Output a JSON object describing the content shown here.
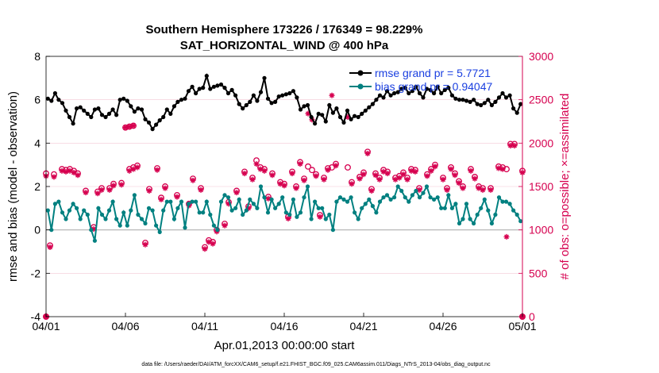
{
  "chart_data": {
    "type": "line",
    "title_line1": "Southern Hemisphere 173226 / 176349 = 98.229%",
    "title_line2": "SAT_HORIZONTAL_WIND @ 400 hPa",
    "xlabel": "Apr.01,2013 00:00:00 start",
    "ylabel_left": "rmse and bias (model - observation)",
    "ylabel_right": "# of obs: o=possible; ×=assimilated",
    "footnote": "data file: /Users/raeder/DAI/ATM_forcXX/CAM6_setup/f.e21.FHIST_BGC.f09_025.CAM6assim.011/Diags_NTrS_2013-04/obs_diag_output.nc",
    "xlim": [
      0,
      30
    ],
    "ylim_left": [
      -4,
      8
    ],
    "ylim_right": [
      0,
      3000
    ],
    "x_ticks": [
      0,
      5,
      10,
      15,
      20,
      25,
      30
    ],
    "x_tick_labels": [
      "04/01",
      "04/06",
      "04/11",
      "04/16",
      "04/21",
      "04/26",
      "05/01"
    ],
    "y_left_ticks": [
      -4,
      -2,
      0,
      2,
      4,
      6,
      8
    ],
    "y_left_tick_labels": [
      "-4",
      "-2",
      "0",
      "2",
      "4",
      "6",
      "8"
    ],
    "y_right_ticks": [
      0,
      500,
      1000,
      1500,
      2000,
      2500,
      3000
    ],
    "y_right_tick_labels": [
      "0",
      "500",
      "1000",
      "1500",
      "2000",
      "2500",
      "3000"
    ],
    "legend": [
      {
        "label": "rmse grand pr = 5.7721",
        "color": "#000000"
      },
      {
        "label": "bias grand pr = 0.94047",
        "color": "#008080"
      }
    ],
    "colors": {
      "rmse": "#000000",
      "bias": "#008080",
      "obs": "#d6004f",
      "zero_line": "#b0b0b0",
      "axis_right": "#d6004f"
    },
    "rmse": [
      6.05,
      5.95,
      6.3,
      6.0,
      5.85,
      5.5,
      5.2,
      4.9,
      5.6,
      5.65,
      5.5,
      5.35,
      5.2,
      5.55,
      5.6,
      5.3,
      5.2,
      5.35,
      5.55,
      5.3,
      6.0,
      6.05,
      5.95,
      5.7,
      5.45,
      5.6,
      5.55,
      5.1,
      4.95,
      4.65,
      4.85,
      5.05,
      5.2,
      5.55,
      5.35,
      5.7,
      5.9,
      6.0,
      6.05,
      6.4,
      6.6,
      6.3,
      6.5,
      6.55,
      7.1,
      6.5,
      6.6,
      6.65,
      6.7,
      6.55,
      6.3,
      6.45,
      6.2,
      5.8,
      5.6,
      5.75,
      5.9,
      6.2,
      5.95,
      6.35,
      7.0,
      6.05,
      5.85,
      5.9,
      6.15,
      6.2,
      6.25,
      6.3,
      6.4,
      6.1,
      5.55,
      5.7,
      5.75,
      5.2,
      4.9,
      5.35,
      5.3,
      5.0,
      5.75,
      5.4,
      5.6,
      5.2,
      4.95,
      5.5,
      5.1,
      5.25,
      5.2,
      5.35,
      5.5,
      5.65,
      5.8,
      6.0,
      6.2,
      6.1,
      6.4,
      6.2,
      6.3,
      6.35,
      6.5,
      6.55,
      6.3,
      6.4,
      6.6,
      6.3,
      6.1,
      6.5,
      6.45,
      6.3,
      6.6,
      6.3,
      6.45,
      6.55,
      6.2,
      6.05,
      6.0,
      6.0,
      5.95,
      5.9,
      6.0,
      5.8,
      5.75,
      5.85,
      6.0,
      5.75,
      5.9,
      6.1,
      6.3,
      6.1,
      6.2,
      5.6,
      5.4,
      5.8
    ],
    "bias": [
      0.9,
      0.0,
      1.2,
      1.3,
      0.8,
      0.5,
      0.9,
      1.2,
      1.0,
      0.5,
      0.9,
      0.7,
      0.0,
      -0.5,
      1.0,
      0.7,
      0.5,
      0.9,
      1.3,
      0.5,
      0.2,
      0.8,
      0.2,
      0.9,
      1.6,
      0.7,
      0.5,
      0.3,
      1.0,
      0.9,
      0.2,
      -0.1,
      0.9,
      1.3,
      1.3,
      0.5,
      1.0,
      1.3,
      0.1,
      1.2,
      1.3,
      1.3,
      0.8,
      0.8,
      1.3,
      0.7,
      0.2,
      0.0,
      1.3,
      1.6,
      1.5,
      0.9,
      1.0,
      1.4,
      0.7,
      0.9,
      1.4,
      1.2,
      1.0,
      2.0,
      1.5,
      0.8,
      1.4,
      1.0,
      1.2,
      1.5,
      0.8,
      0.7,
      1.4,
      0.6,
      0.8,
      1.5,
      2.0,
      0.5,
      1.3,
      1.0,
      1.0,
      0.5,
      0.7,
      0.0,
      1.3,
      1.5,
      1.4,
      1.3,
      1.5,
      0.8,
      0.5,
      1.0,
      1.2,
      1.4,
      1.1,
      0.8,
      1.3,
      1.5,
      1.6,
      1.4,
      1.5,
      2.0,
      1.8,
      1.5,
      1.3,
      1.6,
      1.8,
      1.5,
      1.7,
      2.0,
      1.5,
      1.4,
      1.5,
      1.0,
      1.0,
      1.6,
      1.0,
      1.2,
      0.3,
      0.5,
      1.2,
      0.5,
      0.3,
      0.7,
      1.0,
      1.4,
      0.9,
      0.3,
      0.7,
      1.5,
      1.3,
      1.3,
      1.2,
      0.9,
      0.7,
      0.4
    ],
    "obs_possible": [
      [
        0,
        1650
      ],
      [
        0.25,
        820
      ],
      [
        0.5,
        1640
      ],
      [
        1,
        1700
      ],
      [
        1.25,
        1690
      ],
      [
        1.5,
        1700
      ],
      [
        1.75,
        1680
      ],
      [
        2,
        1650
      ],
      [
        2.5,
        1450
      ],
      [
        3,
        1030
      ],
      [
        3.25,
        1440
      ],
      [
        3.5,
        1480
      ],
      [
        4,
        1480
      ],
      [
        4.25,
        1530
      ],
      [
        4.75,
        1540
      ],
      [
        5.25,
        1700
      ],
      [
        5.5,
        1720
      ],
      [
        5.75,
        1740
      ],
      [
        6.25,
        850
      ],
      [
        6.5,
        1470
      ],
      [
        7,
        1710
      ],
      [
        7.25,
        1370
      ],
      [
        7.5,
        1500
      ],
      [
        8.25,
        1400
      ],
      [
        9,
        1300
      ],
      [
        9.25,
        1590
      ],
      [
        9.75,
        1480
      ],
      [
        10,
        800
      ],
      [
        10.25,
        880
      ],
      [
        10.5,
        860
      ],
      [
        10.75,
        1000
      ],
      [
        11.25,
        1070
      ],
      [
        11.5,
        1320
      ],
      [
        12,
        1450
      ],
      [
        12.5,
        1670
      ],
      [
        12.75,
        1270
      ],
      [
        13,
        1600
      ],
      [
        13.25,
        1800
      ],
      [
        13.5,
        1720
      ],
      [
        13.75,
        1700
      ],
      [
        14,
        1380
      ],
      [
        14.25,
        1650
      ],
      [
        14.75,
        1550
      ],
      [
        15,
        1530
      ],
      [
        15.25,
        1150
      ],
      [
        15.5,
        1670
      ],
      [
        15.75,
        1500
      ],
      [
        16,
        1780
      ],
      [
        16.25,
        1590
      ],
      [
        16.5,
        1730
      ],
      [
        16.75,
        1690
      ],
      [
        17,
        1640
      ],
      [
        17.25,
        1170
      ],
      [
        17.5,
        1600
      ],
      [
        17.75,
        1710
      ],
      [
        18,
        1720
      ],
      [
        18.25,
        1760
      ],
      [
        19,
        1720
      ],
      [
        19.25,
        1550
      ],
      [
        19.75,
        1610
      ],
      [
        20,
        1660
      ],
      [
        20.25,
        1900
      ],
      [
        20.5,
        1470
      ],
      [
        20.75,
        1650
      ],
      [
        21,
        1600
      ],
      [
        21.25,
        1690
      ],
      [
        21.5,
        1670
      ],
      [
        22,
        1600
      ],
      [
        22.25,
        1620
      ],
      [
        22.5,
        1660
      ],
      [
        22.75,
        1600
      ],
      [
        23,
        1700
      ],
      [
        23.25,
        1690
      ],
      [
        23.5,
        1480
      ],
      [
        24,
        1640
      ],
      [
        24.25,
        1700
      ],
      [
        24.5,
        1750
      ],
      [
        25,
        1600
      ],
      [
        25.25,
        1480
      ],
      [
        25.5,
        1720
      ],
      [
        25.75,
        1650
      ],
      [
        26,
        1560
      ],
      [
        26.25,
        1500
      ],
      [
        26.75,
        1700
      ],
      [
        27,
        1610
      ],
      [
        27.25,
        1500
      ],
      [
        27.5,
        1480
      ],
      [
        28,
        1480
      ],
      [
        28.5,
        1730
      ],
      [
        28.75,
        1720
      ],
      [
        29,
        1700
      ],
      [
        29.25,
        1990
      ],
      [
        29.5,
        1990
      ],
      [
        30,
        1680
      ]
    ],
    "obs_assimilated": [
      [
        0,
        1620
      ],
      [
        0.25,
        800
      ],
      [
        0.5,
        1610
      ],
      [
        1,
        1680
      ],
      [
        1.25,
        1670
      ],
      [
        1.5,
        1680
      ],
      [
        1.75,
        1660
      ],
      [
        2,
        1630
      ],
      [
        2.5,
        1430
      ],
      [
        3,
        1010
      ],
      [
        3.25,
        1420
      ],
      [
        3.5,
        1460
      ],
      [
        4,
        1460
      ],
      [
        4.25,
        1510
      ],
      [
        4.75,
        1520
      ],
      [
        5.25,
        1680
      ],
      [
        5.5,
        1700
      ],
      [
        5.75,
        1720
      ],
      [
        6.25,
        830
      ],
      [
        6.5,
        1450
      ],
      [
        7,
        1690
      ],
      [
        7.25,
        1350
      ],
      [
        7.5,
        1480
      ],
      [
        8.25,
        1380
      ],
      [
        9,
        1280
      ],
      [
        9.25,
        1570
      ],
      [
        9.75,
        1460
      ],
      [
        10,
        780
      ],
      [
        10.25,
        860
      ],
      [
        10.5,
        840
      ],
      [
        10.75,
        980
      ],
      [
        11.25,
        1050
      ],
      [
        11.5,
        1300
      ],
      [
        12,
        1430
      ],
      [
        12.5,
        1650
      ],
      [
        12.75,
        1250
      ],
      [
        13,
        1580
      ],
      [
        13.25,
        1760
      ],
      [
        13.5,
        1700
      ],
      [
        13.75,
        1680
      ],
      [
        14,
        1360
      ],
      [
        14.25,
        1630
      ],
      [
        14.75,
        1530
      ],
      [
        15,
        1510
      ],
      [
        15.25,
        1130
      ],
      [
        15.5,
        1650
      ],
      [
        15.75,
        1480
      ],
      [
        16,
        1760
      ],
      [
        16.25,
        1570
      ],
      [
        16.5,
        2340
      ],
      [
        16.75,
        2270
      ],
      [
        17,
        1620
      ],
      [
        17.25,
        1150
      ],
      [
        17.5,
        1580
      ],
      [
        17.75,
        1690
      ],
      [
        18,
        2550
      ],
      [
        18.25,
        1740
      ],
      [
        19,
        2300
      ],
      [
        19.25,
        1530
      ],
      [
        19.75,
        1590
      ],
      [
        20,
        1640
      ],
      [
        20.25,
        1880
      ],
      [
        20.5,
        1450
      ],
      [
        20.75,
        1630
      ],
      [
        21,
        1580
      ],
      [
        21.25,
        1670
      ],
      [
        21.5,
        1650
      ],
      [
        22,
        1580
      ],
      [
        22.25,
        1600
      ],
      [
        22.5,
        1640
      ],
      [
        22.75,
        1580
      ],
      [
        23,
        1680
      ],
      [
        23.25,
        1670
      ],
      [
        23.5,
        1460
      ],
      [
        24,
        1620
      ],
      [
        24.25,
        1680
      ],
      [
        24.5,
        1730
      ],
      [
        25,
        1580
      ],
      [
        25.25,
        1460
      ],
      [
        25.5,
        1700
      ],
      [
        25.75,
        1630
      ],
      [
        26,
        1540
      ],
      [
        26.25,
        1480
      ],
      [
        26.75,
        1680
      ],
      [
        27,
        1590
      ],
      [
        27.25,
        1480
      ],
      [
        27.5,
        1460
      ],
      [
        28,
        1460
      ],
      [
        28.5,
        1710
      ],
      [
        28.75,
        1700
      ],
      [
        29,
        920
      ],
      [
        29.25,
        1970
      ],
      [
        29.5,
        1970
      ],
      [
        30,
        1660
      ]
    ],
    "obs_spikes": [
      [
        5,
        2180
      ],
      [
        5.25,
        2190
      ],
      [
        5.5,
        2200
      ]
    ]
  }
}
